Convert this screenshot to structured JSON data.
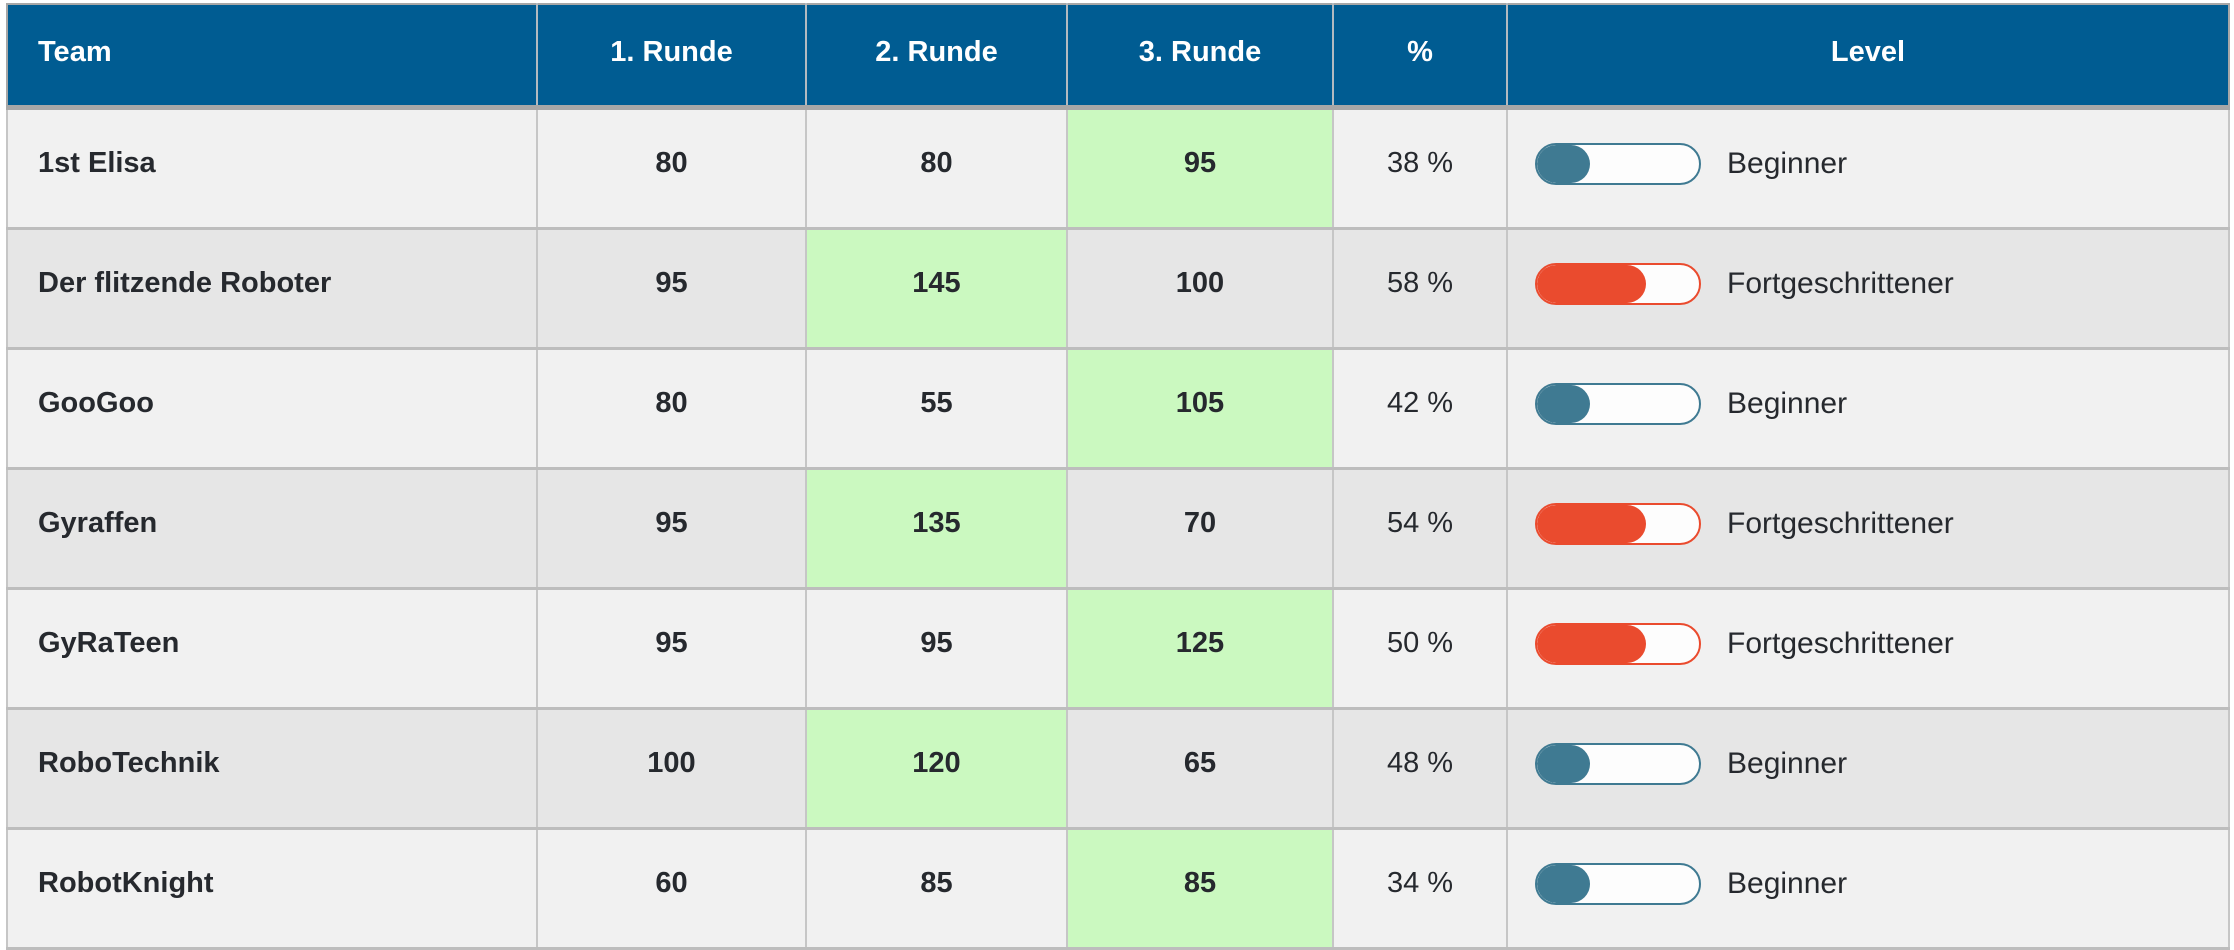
{
  "header": {
    "columns": [
      "Team",
      "1. Runde",
      "2. Runde",
      "3. Runde",
      "%",
      "Level"
    ]
  },
  "rows": [
    {
      "team": "1st Elisa",
      "rounds": [
        "80",
        "80",
        "95"
      ],
      "best_round": 3,
      "percent": "38 %",
      "level": {
        "label": "Beginner",
        "type": "beginner"
      }
    },
    {
      "team": "Der flitzende Roboter",
      "rounds": [
        "95",
        "145",
        "100"
      ],
      "best_round": 2,
      "percent": "58 %",
      "level": {
        "label": "Fortgeschrittener",
        "type": "advanced"
      }
    },
    {
      "team": "GooGoo",
      "rounds": [
        "80",
        "55",
        "105"
      ],
      "best_round": 3,
      "percent": "42 %",
      "level": {
        "label": "Beginner",
        "type": "beginner"
      }
    },
    {
      "team": "Gyraffen",
      "rounds": [
        "95",
        "135",
        "70"
      ],
      "best_round": 2,
      "percent": "54 %",
      "level": {
        "label": "Fortgeschrittener",
        "type": "advanced"
      }
    },
    {
      "team": "GyRaTeen",
      "rounds": [
        "95",
        "95",
        "125"
      ],
      "best_round": 3,
      "percent": "50 %",
      "level": {
        "label": "Fortgeschrittener",
        "type": "advanced"
      }
    },
    {
      "team": "RoboTechnik",
      "rounds": [
        "100",
        "120",
        "65"
      ],
      "best_round": 2,
      "percent": "48 %",
      "level": {
        "label": "Beginner",
        "type": "beginner"
      }
    },
    {
      "team": "RobotKnight",
      "rounds": [
        "60",
        "85",
        "85"
      ],
      "best_round": 3,
      "percent": "34 %",
      "level": {
        "label": "Beginner",
        "type": "beginner"
      }
    }
  ],
  "levels": {
    "beginner": {
      "color": "#3f7a92",
      "fill_percent": 33
    },
    "advanced": {
      "color": "#ea4b2e",
      "fill_percent": 67
    }
  },
  "colors": {
    "header_bg": "#005c92",
    "header_text": "#ffffff",
    "best_round_highlight": "#cbf9c0",
    "row_odd_bg": "#f1f1f1",
    "row_even_bg": "#e6e6e6",
    "text": "#26292e"
  }
}
